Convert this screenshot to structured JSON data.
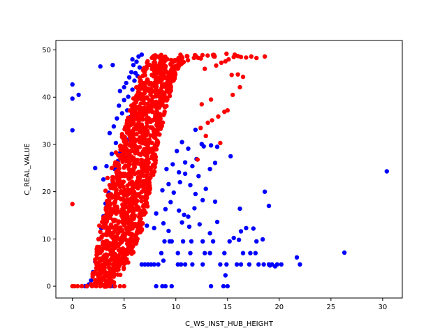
{
  "chart_data": {
    "type": "scatter",
    "title": "",
    "xlabel": "C_WS_INST_HUB_HEIGHT",
    "ylabel": "C_REAL_VALUE",
    "xlim": [
      -1.6,
      31.9
    ],
    "ylim": [
      -2.5,
      52.0
    ],
    "xticks": [
      0,
      5,
      10,
      15,
      20,
      25,
      30
    ],
    "yticks": [
      0,
      10,
      20,
      30,
      40,
      50
    ],
    "grid": false,
    "legend": "none",
    "series": [
      {
        "color": "#0000ff",
        "points": [
          [
            0.0,
            42.7
          ],
          [
            0.0,
            39.7
          ],
          [
            0.6,
            40.5
          ],
          [
            0.0,
            33.0
          ],
          [
            2.2,
            25.0
          ],
          [
            2.7,
            46.5
          ],
          [
            3.0,
            22.6
          ],
          [
            3.3,
            25.4
          ],
          [
            3.9,
            46.8
          ],
          [
            3.6,
            32.4
          ],
          [
            3.8,
            28.0
          ],
          [
            4.0,
            33.8
          ],
          [
            4.2,
            30.3
          ],
          [
            4.3,
            35.5
          ],
          [
            4.5,
            38.2
          ],
          [
            4.6,
            41.3
          ],
          [
            4.8,
            36.6
          ],
          [
            5.0,
            42.1
          ],
          [
            5.0,
            39.4
          ],
          [
            5.2,
            43.0
          ],
          [
            5.3,
            37.2
          ],
          [
            5.5,
            44.2
          ],
          [
            5.4,
            40.1
          ],
          [
            5.7,
            45.3
          ],
          [
            5.8,
            41.6
          ],
          [
            5.6,
            35.8
          ],
          [
            5.9,
            46.8
          ],
          [
            6.0,
            43.5
          ],
          [
            6.2,
            47.5
          ],
          [
            6.1,
            45.1
          ],
          [
            5.8,
            48.0
          ],
          [
            6.4,
            48.6
          ],
          [
            6.5,
            46.3
          ],
          [
            6.7,
            49.0
          ],
          [
            6.3,
            44.5
          ],
          [
            5.1,
            33.5
          ],
          [
            4.9,
            31.8
          ],
          [
            4.6,
            28.2
          ],
          [
            4.4,
            26.5
          ],
          [
            5.0,
            29.0
          ],
          [
            5.3,
            31.0
          ],
          [
            4.1,
            24.8
          ],
          [
            3.9,
            22.1
          ],
          [
            3.5,
            19.8
          ],
          [
            3.2,
            17.5
          ],
          [
            3.0,
            14.8
          ],
          [
            2.8,
            12.3
          ],
          [
            2.6,
            10.0
          ],
          [
            2.4,
            7.8
          ],
          [
            2.2,
            5.2
          ],
          [
            2.0,
            3.0
          ],
          [
            1.8,
            1.2
          ],
          [
            1.6,
            0.4
          ],
          [
            1.4,
            0.0
          ],
          [
            1.2,
            0.0
          ],
          [
            3.3,
            0.0
          ],
          [
            3.7,
            0.0
          ],
          [
            4.0,
            0.0
          ],
          [
            8.1,
            0.0
          ],
          [
            8.7,
            0.0
          ],
          [
            9.0,
            0.0
          ],
          [
            9.6,
            0.0
          ],
          [
            13.4,
            0.0
          ],
          [
            14.6,
            0.0
          ],
          [
            15.0,
            0.0
          ],
          [
            14.8,
            2.3
          ],
          [
            6.7,
            4.6
          ],
          [
            7.0,
            4.6
          ],
          [
            7.3,
            4.6
          ],
          [
            7.6,
            4.6
          ],
          [
            7.9,
            4.6
          ],
          [
            8.3,
            4.6
          ],
          [
            8.8,
            5.4
          ],
          [
            10.2,
            4.6
          ],
          [
            10.5,
            4.6
          ],
          [
            10.9,
            4.6
          ],
          [
            11.6,
            4.6
          ],
          [
            12.6,
            4.6
          ],
          [
            14.3,
            4.6
          ],
          [
            14.9,
            4.6
          ],
          [
            15.9,
            4.6
          ],
          [
            16.3,
            4.6
          ],
          [
            17.1,
            4.6
          ],
          [
            18.0,
            4.6
          ],
          [
            18.5,
            4.6
          ],
          [
            19.0,
            4.6
          ],
          [
            19.3,
            4.6
          ],
          [
            19.8,
            4.6
          ],
          [
            20.2,
            4.6
          ],
          [
            22.0,
            4.6
          ],
          [
            19.6,
            4.2
          ],
          [
            19.1,
            4.4
          ],
          [
            8.6,
            7.0
          ],
          [
            10.2,
            7.0
          ],
          [
            11.4,
            7.0
          ],
          [
            12.8,
            7.0
          ],
          [
            13.3,
            7.0
          ],
          [
            14.7,
            7.0
          ],
          [
            16.5,
            7.0
          ],
          [
            17.2,
            7.0
          ],
          [
            17.7,
            7.0
          ],
          [
            21.7,
            6.1
          ],
          [
            26.3,
            7.1
          ],
          [
            8.9,
            9.5
          ],
          [
            9.4,
            9.5
          ],
          [
            9.6,
            9.5
          ],
          [
            10.7,
            9.5
          ],
          [
            11.5,
            9.5
          ],
          [
            12.6,
            9.5
          ],
          [
            13.6,
            9.5
          ],
          [
            15.2,
            9.5
          ],
          [
            17.8,
            9.5
          ],
          [
            18.4,
            9.9
          ],
          [
            15.6,
            10.2
          ],
          [
            16.1,
            9.8
          ],
          [
            7.2,
            12.8
          ],
          [
            7.9,
            12.3
          ],
          [
            8.8,
            13.3
          ],
          [
            9.3,
            11.7
          ],
          [
            10.6,
            13.5
          ],
          [
            11.3,
            12.6
          ],
          [
            12.3,
            13.1
          ],
          [
            13.3,
            11.2
          ],
          [
            14.0,
            13.6
          ],
          [
            16.3,
            11.6
          ],
          [
            16.8,
            12.3
          ],
          [
            17.5,
            12.2
          ],
          [
            8.1,
            15.4
          ],
          [
            9.0,
            16.3
          ],
          [
            9.5,
            17.8
          ],
          [
            10.3,
            16.0
          ],
          [
            10.8,
            15.1
          ],
          [
            11.2,
            14.7
          ],
          [
            11.8,
            16.5
          ],
          [
            12.6,
            18.2
          ],
          [
            13.8,
            17.9
          ],
          [
            16.2,
            16.4
          ],
          [
            19.0,
            17.0
          ],
          [
            8.7,
            20.3
          ],
          [
            9.3,
            21.6
          ],
          [
            9.8,
            19.8
          ],
          [
            10.4,
            22.0
          ],
          [
            10.9,
            23.8
          ],
          [
            11.4,
            21.4
          ],
          [
            11.9,
            19.5
          ],
          [
            12.2,
            23.3
          ],
          [
            12.9,
            20.6
          ],
          [
            18.6,
            20.0
          ],
          [
            9.1,
            24.8
          ],
          [
            9.7,
            25.8
          ],
          [
            10.3,
            24.1
          ],
          [
            10.9,
            26.2
          ],
          [
            11.6,
            25.4
          ],
          [
            12.0,
            26.9
          ],
          [
            13.3,
            24.8
          ],
          [
            13.8,
            26.1
          ],
          [
            15.3,
            27.5
          ],
          [
            12.5,
            30.1
          ],
          [
            10.1,
            28.6
          ],
          [
            10.6,
            30.5
          ],
          [
            11.2,
            29.1
          ],
          [
            11.9,
            33.1
          ],
          [
            12.7,
            29.6
          ],
          [
            13.4,
            29.8
          ],
          [
            14.0,
            29.5
          ],
          [
            30.4,
            24.3
          ]
        ]
      },
      {
        "color": "#ff0000",
        "points": [
          [
            0.0,
            17.4
          ],
          [
            0.0,
            0.0
          ],
          [
            0.2,
            0.0
          ],
          [
            0.5,
            0.0
          ],
          [
            0.9,
            0.0
          ],
          [
            1.4,
            0.0
          ],
          [
            1.9,
            0.0
          ],
          [
            2.3,
            0.0
          ],
          [
            2.7,
            0.0
          ],
          [
            3.2,
            0.0
          ],
          [
            3.6,
            0.0
          ],
          [
            4.1,
            0.0
          ],
          [
            4.6,
            0.0
          ],
          [
            5.0,
            0.0
          ],
          [
            1.8,
            0.4
          ],
          [
            2.2,
            1.3
          ],
          [
            2.5,
            2.1
          ],
          [
            2.8,
            2.8
          ],
          [
            3.1,
            3.9
          ],
          [
            3.4,
            4.8
          ],
          [
            3.7,
            5.6
          ],
          [
            2.6,
            12.8
          ],
          [
            2.9,
            12.6
          ],
          [
            3.1,
            13.5
          ],
          [
            3.3,
            15.9
          ],
          [
            3.5,
            18.1
          ],
          [
            3.2,
            20.2
          ],
          [
            3.6,
            21.4
          ],
          [
            3.4,
            22.9
          ],
          [
            3.8,
            25.0
          ],
          [
            4.1,
            25.7
          ],
          [
            4.4,
            26.0
          ],
          [
            4.2,
            28.3
          ],
          [
            4.7,
            28.8
          ],
          [
            5.0,
            30.6
          ],
          [
            4.8,
            32.2
          ],
          [
            5.2,
            33.4
          ],
          [
            12.1,
            26.8
          ],
          [
            14.3,
            30.3
          ],
          [
            12.9,
            31.8
          ],
          [
            12.4,
            33.5
          ],
          [
            13.1,
            34.6
          ],
          [
            13.5,
            35.1
          ],
          [
            14.1,
            35.9
          ],
          [
            12.5,
            38.5
          ],
          [
            13.4,
            39.5
          ],
          [
            14.7,
            36.9
          ],
          [
            15.0,
            37.2
          ],
          [
            15.5,
            40.5
          ],
          [
            16.2,
            42.1
          ],
          [
            16.5,
            44.3
          ],
          [
            15.4,
            44.7
          ],
          [
            16.0,
            44.8
          ],
          [
            12.8,
            46.0
          ],
          [
            13.9,
            46.7
          ],
          [
            14.4,
            47.3
          ],
          [
            14.8,
            47.6
          ],
          [
            15.1,
            48.0
          ],
          [
            15.6,
            48.5
          ],
          [
            16.0,
            48.7
          ],
          [
            16.3,
            48.5
          ],
          [
            16.8,
            48.4
          ],
          [
            17.3,
            48.6
          ],
          [
            17.8,
            48.3
          ],
          [
            18.6,
            48.6
          ],
          [
            15.7,
            49.0
          ],
          [
            14.9,
            49.2
          ],
          [
            13.7,
            48.9
          ]
        ],
        "bands": [
          {
            "y": 0,
            "x_min": 1.8,
            "x_max": 3.8
          },
          {
            "y": 4,
            "x_min": 2.0,
            "x_max": 5.2
          },
          {
            "y": 8,
            "x_min": 2.3,
            "x_max": 6.1
          },
          {
            "y": 12,
            "x_min": 2.7,
            "x_max": 6.8
          },
          {
            "y": 16,
            "x_min": 3.1,
            "x_max": 7.2
          },
          {
            "y": 20,
            "x_min": 3.5,
            "x_max": 7.6
          },
          {
            "y": 24,
            "x_min": 3.9,
            "x_max": 7.9
          },
          {
            "y": 28,
            "x_min": 4.3,
            "x_max": 8.2
          },
          {
            "y": 32,
            "x_min": 4.8,
            "x_max": 8.5
          },
          {
            "y": 36,
            "x_min": 5.4,
            "x_max": 8.9
          },
          {
            "y": 40,
            "x_min": 5.9,
            "x_max": 9.4
          },
          {
            "y": 44,
            "x_min": 6.4,
            "x_max": 9.9
          },
          {
            "y": 46,
            "x_min": 6.8,
            "x_max": 10.3
          },
          {
            "y": 48,
            "x_min": 7.3,
            "x_max": 11.2
          },
          {
            "y": 49,
            "x_min": 8.0,
            "x_max": 14.6
          }
        ]
      }
    ]
  }
}
